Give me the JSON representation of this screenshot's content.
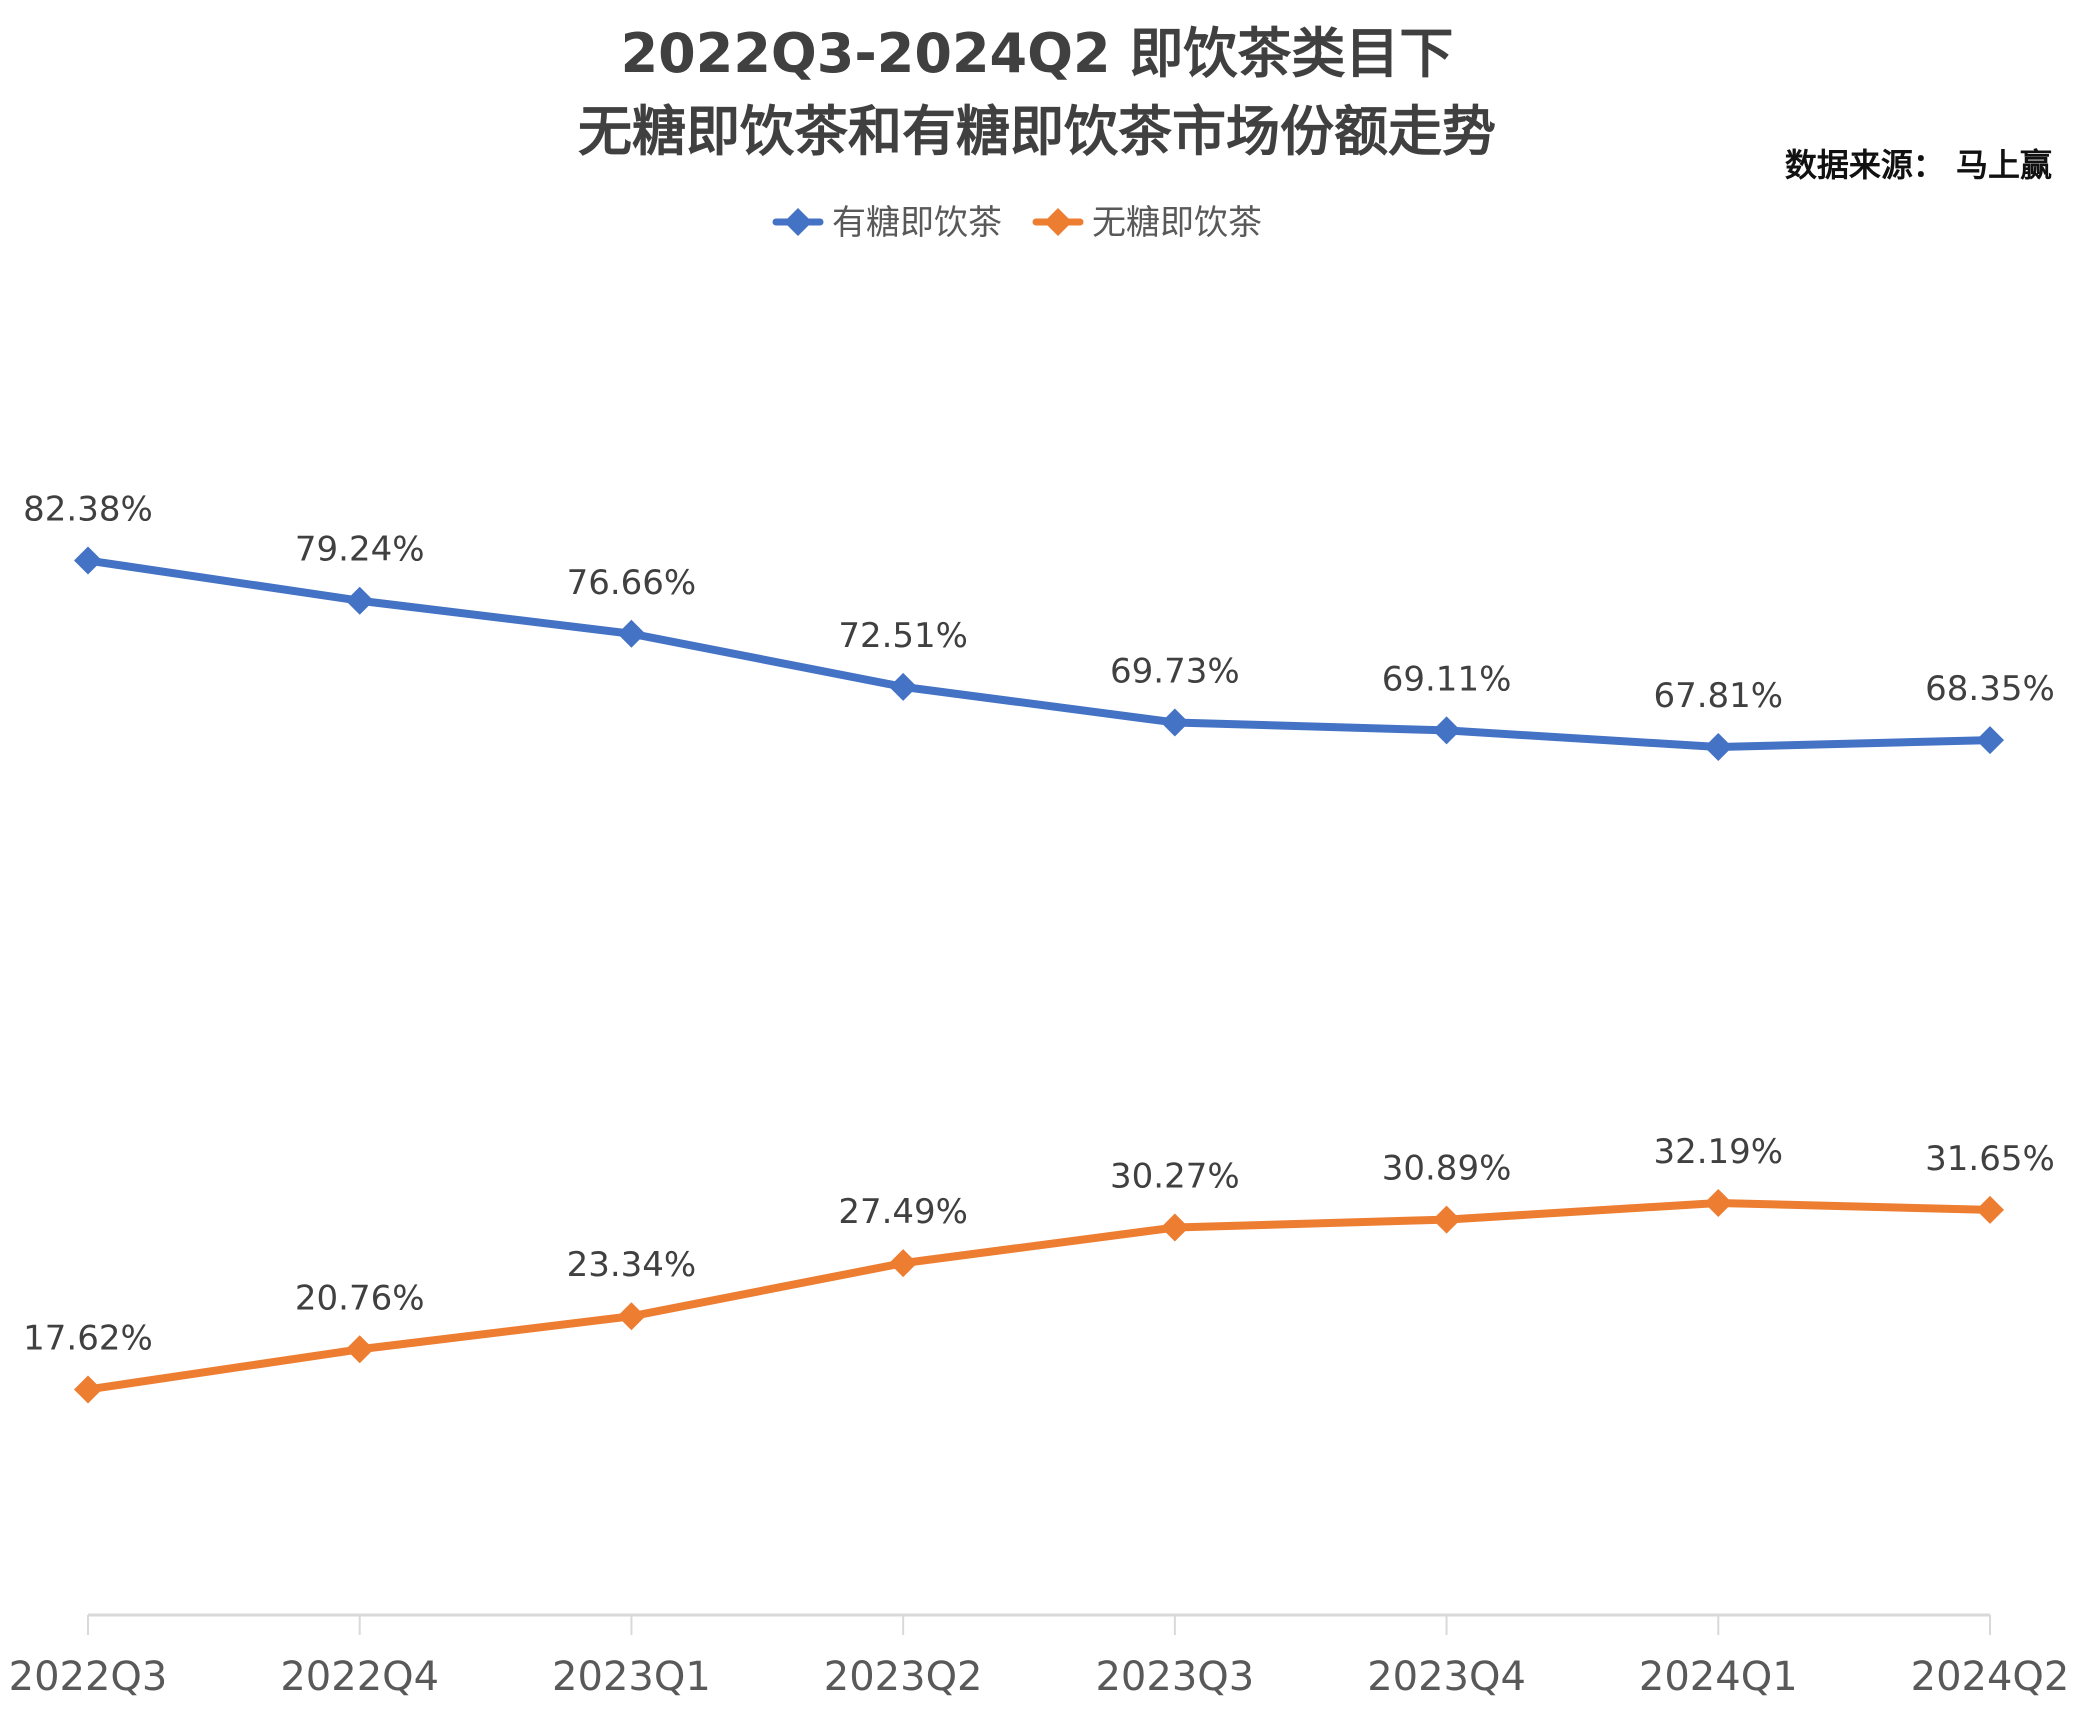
{
  "chart_data": {
    "type": "line",
    "title_line1": "2022Q3-2024Q2 即饮茶类目下",
    "title_line2": "无糖即饮茶和有糖即饮茶市场份额走势",
    "source": "数据来源： 马上赢",
    "xlabel": "",
    "ylabel": "",
    "ylim": [
      0,
      100
    ],
    "grid": false,
    "legend_position": "top-center",
    "categories": [
      "2022Q3",
      "2022Q4",
      "2023Q1",
      "2023Q2",
      "2023Q3",
      "2023Q4",
      "2024Q1",
      "2024Q2"
    ],
    "series": [
      {
        "name": "有糖即饮茶",
        "color": "#4472C4",
        "values": [
          82.38,
          79.24,
          76.66,
          72.51,
          69.73,
          69.11,
          67.81,
          68.35
        ],
        "labels": [
          "82.38%",
          "79.24%",
          "76.66%",
          "72.51%",
          "69.73%",
          "69.11%",
          "67.81%",
          "68.35%"
        ]
      },
      {
        "name": "无糖即饮茶",
        "color": "#ED7D31",
        "values": [
          17.62,
          20.76,
          23.34,
          27.49,
          30.27,
          30.89,
          32.19,
          31.65
        ],
        "labels": [
          "17.62%",
          "20.76%",
          "23.34%",
          "27.49%",
          "30.27%",
          "30.89%",
          "32.19%",
          "31.65%"
        ]
      }
    ],
    "marker": "diamond-icon",
    "axis_color": "#D9D9D9"
  }
}
